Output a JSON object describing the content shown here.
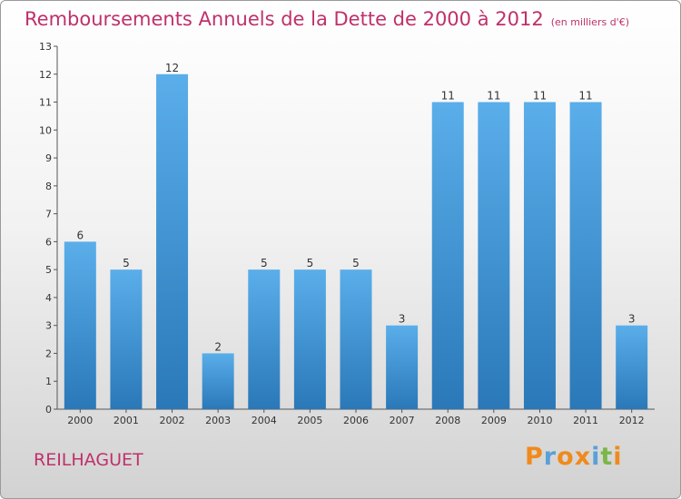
{
  "header": {
    "title": "Remboursements Annuels de la Dette de 2000 à 2012",
    "subtitle": "(en milliers d'€)"
  },
  "footer": {
    "place": "REILHAGUET",
    "logo_text": "Proxiti"
  },
  "colors": {
    "title": "#c0306a",
    "bar_top": "#5aaeea",
    "bar_bottom": "#2a78b8",
    "logo_letters": [
      "#f08a1c",
      "#5aa0d8",
      "#f08a1c",
      "#f08a1c",
      "#5aa0d8",
      "#7ab648",
      "#f08a1c"
    ]
  },
  "chart_data": {
    "type": "bar",
    "categories": [
      "2000",
      "2001",
      "2002",
      "2003",
      "2004",
      "2005",
      "2006",
      "2007",
      "2008",
      "2009",
      "2010",
      "2011",
      "2012"
    ],
    "values": [
      6,
      5,
      12,
      2,
      5,
      5,
      5,
      3,
      11,
      11,
      11,
      11,
      3
    ],
    "ylim": [
      0,
      13
    ],
    "yticks": [
      0,
      1,
      2,
      3,
      4,
      5,
      6,
      7,
      8,
      9,
      10,
      11,
      12,
      13
    ],
    "grid": false,
    "legend": "none"
  }
}
